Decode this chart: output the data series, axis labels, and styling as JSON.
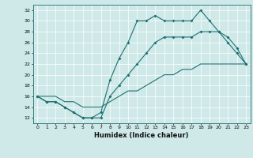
{
  "xlabel": "Humidex (Indice chaleur)",
  "xlim": [
    -0.5,
    23.5
  ],
  "ylim": [
    11,
    33
  ],
  "yticks": [
    12,
    14,
    16,
    18,
    20,
    22,
    24,
    26,
    28,
    30,
    32
  ],
  "xticks": [
    0,
    1,
    2,
    3,
    4,
    5,
    6,
    7,
    8,
    9,
    10,
    11,
    12,
    13,
    14,
    15,
    16,
    17,
    18,
    19,
    20,
    21,
    22,
    23
  ],
  "bg_color": "#cfe9e9",
  "line_color": "#1e7070",
  "line1_y": [
    16,
    15,
    15,
    14,
    13,
    12,
    12,
    13,
    19,
    23,
    26,
    30,
    30,
    31,
    30,
    30,
    30,
    30,
    32,
    30,
    28,
    26,
    24,
    22
  ],
  "line2_y": [
    16,
    15,
    15,
    14,
    13,
    12,
    12,
    12,
    16,
    18,
    20,
    22,
    24,
    26,
    27,
    27,
    27,
    27,
    28,
    28,
    28,
    27,
    25,
    22
  ],
  "line3_y": [
    16,
    16,
    16,
    15,
    15,
    14,
    14,
    14,
    15,
    16,
    17,
    17,
    18,
    19,
    20,
    20,
    21,
    21,
    22,
    22,
    22,
    22,
    22,
    22
  ]
}
